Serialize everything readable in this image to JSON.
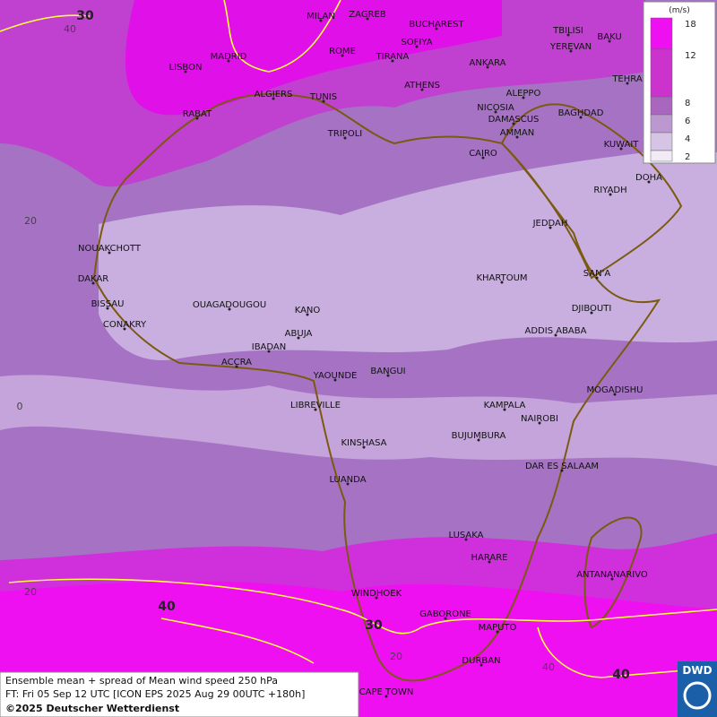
{
  "legend": {
    "unit": "(m/s)",
    "ticks": [
      "18",
      "12",
      "8",
      "6",
      "4",
      "2"
    ]
  },
  "footer": {
    "lines": [
      "Ensemble mean + spread of Mean wind speed 250 hPa",
      "FT: Fri 05 Sep 12 UTC [ICON EPS 2025 Aug 29 00UTC +180h]",
      "©2025 Deutscher Wetterdienst"
    ]
  },
  "logo": "DWD",
  "contour_labels": [
    "30",
    "40",
    "30",
    "40"
  ],
  "grid_labels": [
    "40",
    "20",
    "0",
    "20",
    "40",
    "20"
  ],
  "cities": [
    "MILAN",
    "ZAGREB",
    "BUCHAREST",
    "TBILISI",
    "BAKU",
    "YEREVAN",
    "ROME",
    "SOFIYA",
    "MADRID",
    "TIRANA",
    "ANKARA",
    "LISBON",
    "TEHRA",
    "ATHENS",
    "ALGIERS",
    "TUNIS",
    "ALEPPO",
    "RABAT",
    "NICOSIA",
    "BAGHDAD",
    "DAMASCUS",
    "AMMAN",
    "TRIPOLI",
    "KUWAIT",
    "CAIRO",
    "DOHA",
    "RIYADH",
    "JEDDAH",
    "NOUAKCHOTT",
    "SAN'A",
    "DAKAR",
    "KHARTOUM",
    "BISSAU",
    "OUAGADOUGOU",
    "KANO",
    "DJIBOUTI",
    "CONAKRY",
    "ABUJA",
    "ADDIS ABABA",
    "IBADAN",
    "ACCRA",
    "YAOUNDE",
    "BANGUI",
    "MOGADISHU",
    "LIBREVILLE",
    "KAMPALA",
    "NAIROBI",
    "BUJUMBURA",
    "KINSHASA",
    "DAR ES SALAAM",
    "LUANDA",
    "LUSAKA",
    "HARARE",
    "ANTANANARIVO",
    "WINDHOEK",
    "GABORONE",
    "MAPUTO",
    "DURBAN",
    "CAPE TOWN"
  ]
}
